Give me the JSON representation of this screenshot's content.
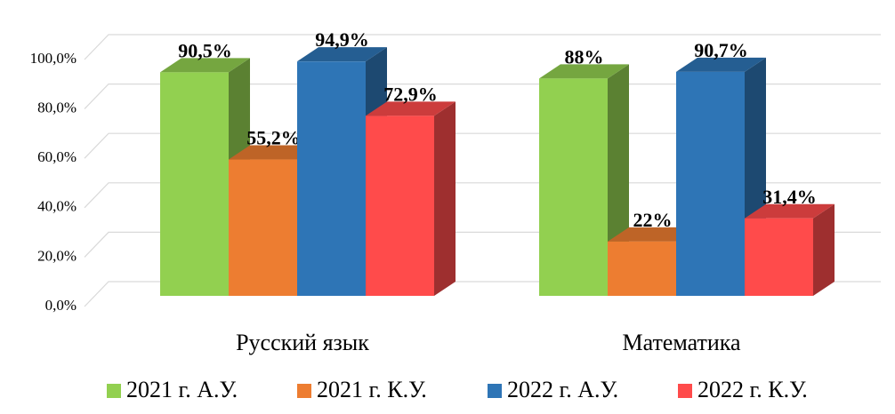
{
  "chart_data": {
    "type": "bar3d",
    "categories": [
      "Русский язык",
      "Математика"
    ],
    "series": [
      {
        "name": "2021 г. А.У.",
        "color": "#92d050",
        "values": [
          90.5,
          88
        ],
        "value_labels": [
          "90,5%",
          "88%"
        ]
      },
      {
        "name": "2021 г. К.У.",
        "color": "#ed7d31",
        "values": [
          55.2,
          22
        ],
        "value_labels": [
          "55,2%",
          "22%"
        ]
      },
      {
        "name": "2022 г. А.У.",
        "color": "#2e75b6",
        "values": [
          94.9,
          90.7
        ],
        "value_labels": [
          "94,9%",
          "90,7%"
        ]
      },
      {
        "name": "2022 г. К.У.",
        "color": "#ff4b4b",
        "values": [
          72.9,
          31.4
        ],
        "value_labels": [
          "72,9%",
          "31,4%"
        ]
      }
    ],
    "ylim": [
      0,
      100
    ],
    "yticks": [
      {
        "value": 0,
        "label": "0,0%"
      },
      {
        "value": 20,
        "label": "20,0%"
      },
      {
        "value": 40,
        "label": "40,0%"
      },
      {
        "value": 60,
        "label": "60,0%"
      },
      {
        "value": 80,
        "label": "80,0%"
      },
      {
        "value": 100,
        "label": "100,0%"
      }
    ],
    "grid": true,
    "legend": "bottom"
  }
}
